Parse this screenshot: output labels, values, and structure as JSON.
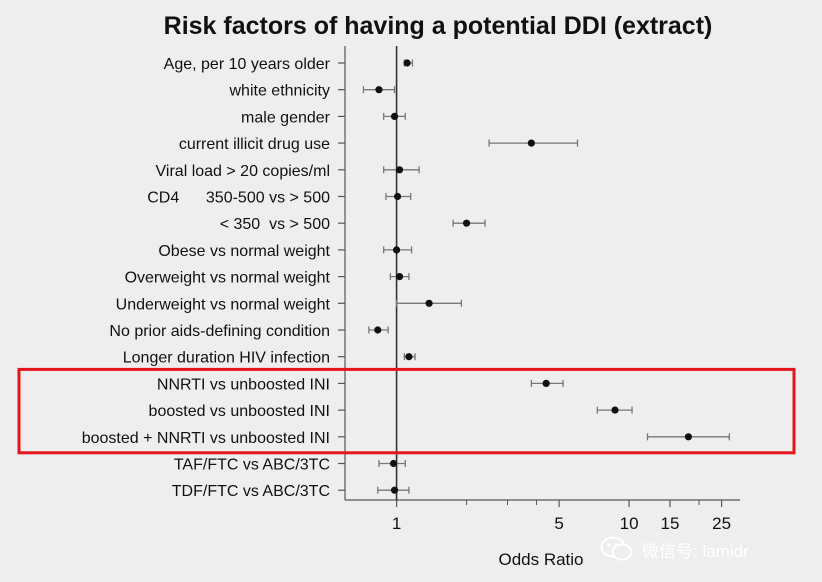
{
  "chart_data": {
    "type": "scatter",
    "subtype": "forest-plot",
    "title": "Risk factors of having a potential DDI (extract)",
    "xlabel": "Odds Ratio",
    "xscale": "log",
    "xlim": [
      0.6,
      30
    ],
    "reference_line": 1,
    "xticks": [
      {
        "value": 1,
        "label": "1"
      },
      {
        "value": 5,
        "label": "5"
      },
      {
        "value": 10,
        "label": "10"
      },
      {
        "value": 15,
        "label": "15"
      },
      {
        "value": 25,
        "label": "25"
      }
    ],
    "minor_ticks": [
      2,
      3,
      4,
      20
    ],
    "rows": [
      {
        "label": "Age, per 10 years older",
        "or": 1.11,
        "lo": 1.08,
        "hi": 1.17
      },
      {
        "label": "white ethnicity",
        "or": 0.84,
        "lo": 0.72,
        "hi": 0.98
      },
      {
        "label": "male gender",
        "or": 0.98,
        "lo": 0.88,
        "hi": 1.09
      },
      {
        "label": "current illicit drug use",
        "or": 3.8,
        "lo": 2.5,
        "hi": 6.0
      },
      {
        "label": "Viral load > 20 copies/ml",
        "or": 1.03,
        "lo": 0.88,
        "hi": 1.25
      },
      {
        "label": "CD4      350-500 vs > 500",
        "or": 1.01,
        "lo": 0.9,
        "hi": 1.15
      },
      {
        "label": "< 350  vs > 500",
        "or": 2.0,
        "lo": 1.75,
        "hi": 2.4
      },
      {
        "label": "Obese vs normal weight",
        "or": 1.0,
        "lo": 0.88,
        "hi": 1.16
      },
      {
        "label": "Overweight vs normal weight",
        "or": 1.03,
        "lo": 0.94,
        "hi": 1.13
      },
      {
        "label": "Underweight vs normal weight",
        "or": 1.38,
        "lo": 1.0,
        "hi": 1.9
      },
      {
        "label": "No prior aids-defining condition",
        "or": 0.83,
        "lo": 0.76,
        "hi": 0.92
      },
      {
        "label": "Longer duration HIV infection",
        "or": 1.13,
        "lo": 1.08,
        "hi": 1.2
      },
      {
        "label": "NNRTI vs unboosted INI",
        "or": 4.4,
        "lo": 3.8,
        "hi": 5.2
      },
      {
        "label": "boosted vs unboosted INI",
        "or": 8.7,
        "lo": 7.3,
        "hi": 10.3
      },
      {
        "label": "boosted + NNRTI vs unboosted INI",
        "or": 18.0,
        "lo": 12.0,
        "hi": 27.0
      },
      {
        "label": "TAF/FTC vs ABC/3TC",
        "or": 0.97,
        "lo": 0.84,
        "hi": 1.09
      },
      {
        "label": "TDF/FTC vs ABC/3TC",
        "or": 0.98,
        "lo": 0.83,
        "hi": 1.13
      }
    ],
    "highlight": {
      "rows": [
        12,
        13,
        14
      ],
      "color": "#e3141b"
    },
    "colors": {
      "background": "#eeeeee",
      "ink": "#111111",
      "axis": "#555555",
      "whisker": "#777777"
    }
  },
  "watermark": {
    "text": "微信号: lamidr",
    "icon": "wechat-icon"
  }
}
